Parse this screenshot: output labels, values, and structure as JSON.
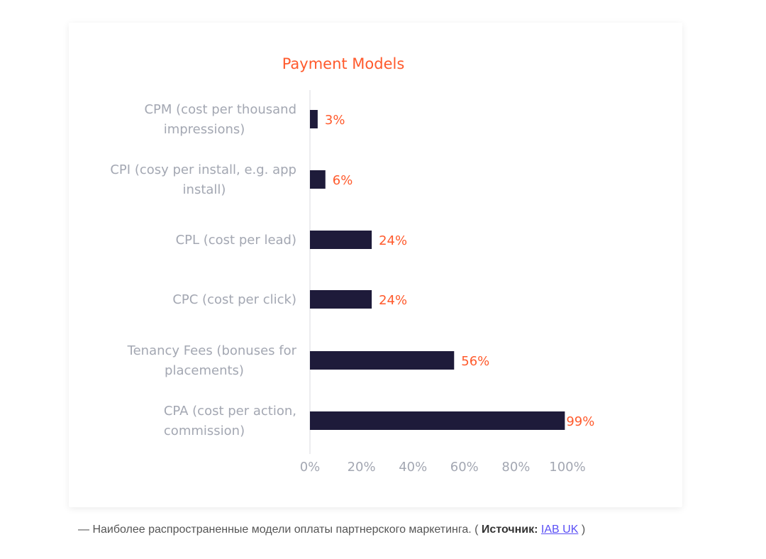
{
  "chart_data": {
    "type": "bar",
    "orientation": "horizontal",
    "title": "Payment Models",
    "categories": [
      [
        "CPM (cost per thousand",
        "impressions)"
      ],
      [
        "CPI (cosy per install, e.g. app",
        "install)"
      ],
      [
        "CPL (cost per lead)"
      ],
      [
        "CPC (cost per click)"
      ],
      [
        "Tenancy Fees (bonuses for",
        "placements)"
      ],
      [
        "CPA (cost per action,",
        "commission)"
      ]
    ],
    "values": [
      3,
      6,
      24,
      24,
      56,
      99
    ],
    "data_labels": [
      "3%",
      "6%",
      "24%",
      "24%",
      "56%",
      "99%"
    ],
    "xlim": [
      0,
      100
    ],
    "x_ticks": [
      "0%",
      "20%",
      "40%",
      "60%",
      "80%",
      "100%"
    ],
    "grid": false,
    "colors": {
      "bar": "#1e1b3a",
      "label": "#ff5a2c",
      "title": "#ff5a2c",
      "axis_text": "#a3a7b2"
    }
  },
  "caption": {
    "text": "— Наиболее распространенные модели оплаты партнерского маркетинга. ( ",
    "source_label": "Источник:",
    "source_link": "IAB UK",
    "close": " )"
  }
}
